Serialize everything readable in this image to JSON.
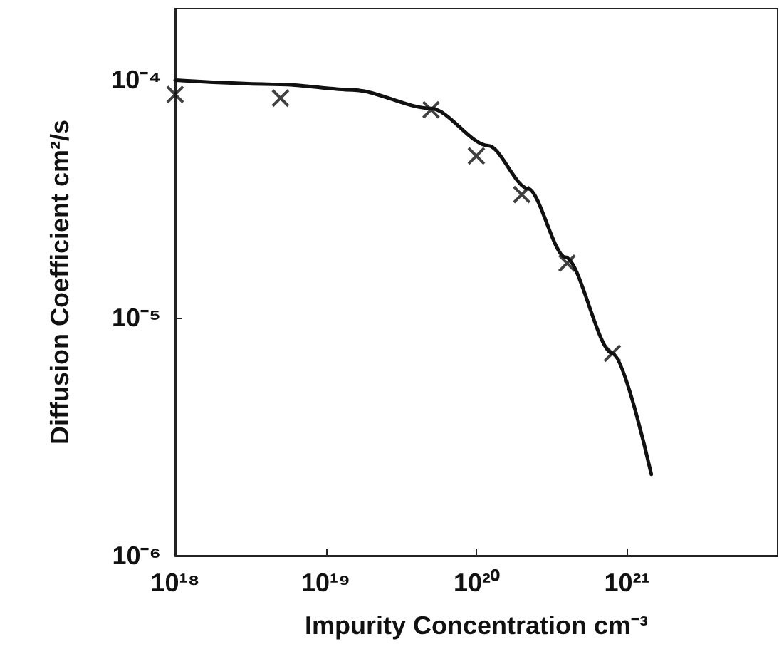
{
  "chart_data": {
    "type": "scatter",
    "xlabel": "Impurity Concentration cm⁻³",
    "ylabel": "Diffusion Coefficient cm²/s",
    "log": "xy",
    "xlim": [
      1e+18,
      1e+22
    ],
    "ylim": [
      1e-06,
      0.0002
    ],
    "xticks": [
      {
        "value": 1e+18,
        "label": "10¹⁸"
      },
      {
        "value": 1e+19,
        "label": "10¹⁹"
      },
      {
        "value": 1e+20,
        "label": "10²⁰"
      },
      {
        "value": 1e+21,
        "label": "10²¹"
      }
    ],
    "yticks": [
      {
        "value": 1e-06,
        "label": "10⁻⁶"
      },
      {
        "value": 1e-05,
        "label": "10⁻⁵"
      },
      {
        "value": 0.0001,
        "label": "10⁻⁴"
      }
    ],
    "grid": false,
    "series": [
      {
        "marker": "cross",
        "color": "#111111",
        "x": [
          1e+18,
          5e+18,
          5e+19,
          1e+20,
          2e+20,
          4e+20,
          8e+20
        ],
        "values": [
          8.7e-05,
          8.4e-05,
          7.5e-05,
          4.8e-05,
          3.3e-05,
          1.7e-05,
          7.1e-06
        ]
      },
      {
        "type": "line",
        "marker": "none",
        "line_style": "solid",
        "color": "#111111",
        "x": [
          1e+18,
          5e+18,
          1.5e+19,
          5e+19,
          1.2e+20,
          2.2e+20,
          3.9e+20,
          8e+20,
          1.45e+21
        ],
        "values": [
          0.0001,
          9.6e-05,
          9.1e-05,
          7.6e-05,
          5.3e-05,
          3.5e-05,
          1.8e-05,
          7.1e-06,
          2.2e-06
        ]
      }
    ]
  }
}
